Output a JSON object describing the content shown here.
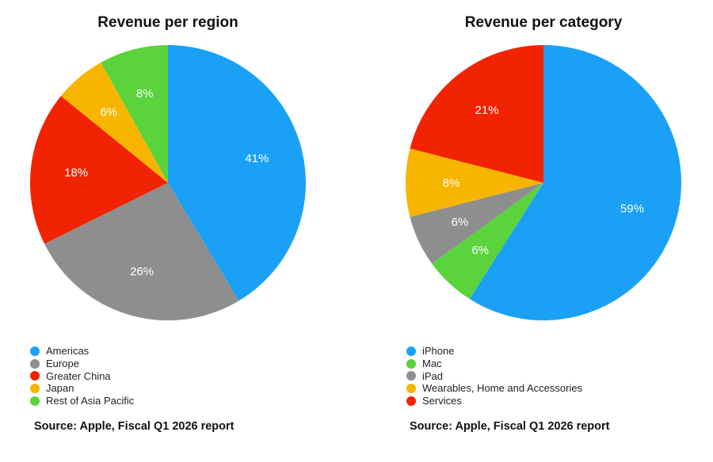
{
  "chart_data": [
    {
      "type": "pie",
      "title": "Revenue per region",
      "categories": [
        "Americas",
        "Europe",
        "Greater China",
        "Japan",
        "Rest of Asia Pacific"
      ],
      "values": [
        41,
        26,
        18,
        6,
        8
      ],
      "data_labels": [
        "41%",
        "26%",
        "18%",
        "6%",
        "8%"
      ],
      "colors": [
        "#1AA1F5",
        "#8E8E8E",
        "#F22300",
        "#F7B500",
        "#5AD33C"
      ],
      "legend_position": "bottom-left",
      "source": "Source: Apple, Fiscal Q1 2026 report"
    },
    {
      "type": "pie",
      "title": "Revenue per category",
      "categories": [
        "iPhone",
        "Mac",
        "iPad",
        "Wearables, Home and Accessories",
        "Services"
      ],
      "values": [
        59,
        6,
        6,
        8,
        21
      ],
      "data_labels": [
        "59%",
        "6%",
        "6%",
        "8%",
        "21%"
      ],
      "colors": [
        "#1AA1F5",
        "#5AD33C",
        "#8E8E8E",
        "#F7B500",
        "#F22300"
      ],
      "legend_position": "bottom-left",
      "source": "Source: Apple, Fiscal Q1 2026 report"
    }
  ]
}
